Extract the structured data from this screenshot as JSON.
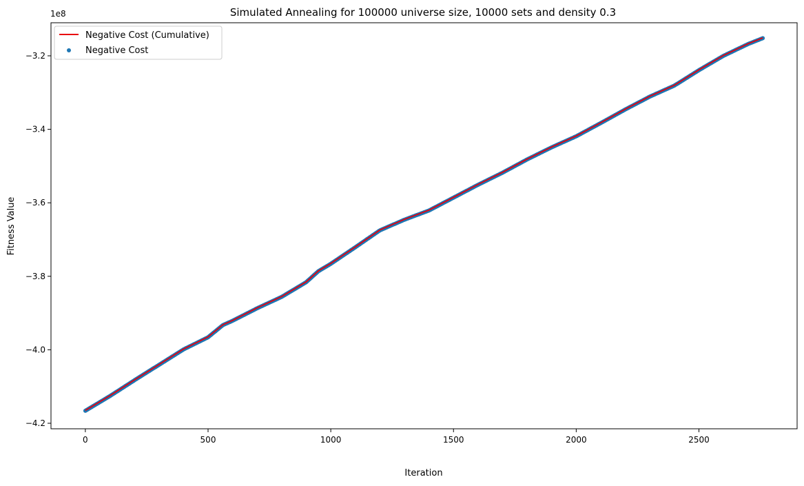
{
  "chart_data": {
    "type": "line",
    "title": "Simulated Annealing for 100000 universe size, 10000 sets and density 0.3",
    "xlabel": "Iteration",
    "ylabel": "Fitness Value",
    "y_offset_label": "1e8",
    "y_scale_factor": 100000000,
    "xlim": [
      -140,
      2900
    ],
    "ylim": [
      -421500000,
      -311000000
    ],
    "x_ticks": [
      0,
      500,
      1000,
      1500,
      2000,
      2500
    ],
    "y_ticks": [
      -4.2,
      -4.0,
      -3.8,
      -3.6,
      -3.4,
      -3.2
    ],
    "x_tick_labels": [
      "0",
      "500",
      "1000",
      "1500",
      "2000",
      "2500"
    ],
    "y_tick_labels": [
      "−4.2",
      "−4.0",
      "−3.8",
      "−3.6",
      "−3.4",
      "−3.2"
    ],
    "grid": false,
    "legend_position": "top-left",
    "series": [
      {
        "name": "Negative Cost (Cumulative)",
        "kind": "line",
        "color": "#e8000b",
        "x": [
          0,
          100,
          200,
          300,
          400,
          500,
          560,
          600,
          700,
          800,
          900,
          950,
          1000,
          1100,
          1200,
          1300,
          1400,
          1500,
          1600,
          1700,
          1800,
          1900,
          2000,
          2100,
          2200,
          2300,
          2400,
          2500,
          2600,
          2700,
          2760
        ],
        "y": [
          -416500000,
          -412500000,
          -408200000,
          -404000000,
          -399800000,
          -396500000,
          -393200000,
          -392000000,
          -388600000,
          -385500000,
          -381500000,
          -378500000,
          -376500000,
          -372000000,
          -367400000,
          -364500000,
          -362000000,
          -358500000,
          -355000000,
          -351700000,
          -348100000,
          -344800000,
          -341800000,
          -338200000,
          -334500000,
          -331000000,
          -328000000,
          -323800000,
          -319900000,
          -316700000,
          -315100000
        ]
      },
      {
        "name": "Negative Cost",
        "kind": "scatter",
        "color": "#1f77b4",
        "x": [
          0,
          100,
          200,
          300,
          400,
          500,
          560,
          600,
          700,
          800,
          900,
          950,
          1000,
          1100,
          1200,
          1300,
          1400,
          1500,
          1600,
          1700,
          1800,
          1900,
          2000,
          2100,
          2200,
          2300,
          2400,
          2500,
          2600,
          2700,
          2760
        ],
        "y": [
          -416600000,
          -412600000,
          -408300000,
          -404100000,
          -399900000,
          -396600000,
          -393300000,
          -392100000,
          -388700000,
          -385600000,
          -381600000,
          -378600000,
          -376600000,
          -372100000,
          -367500000,
          -364600000,
          -362100000,
          -358600000,
          -355100000,
          -351800000,
          -348200000,
          -344900000,
          -341900000,
          -338300000,
          -334600000,
          -331100000,
          -328100000,
          -323900000,
          -320000000,
          -316800000,
          -315200000
        ]
      }
    ]
  }
}
